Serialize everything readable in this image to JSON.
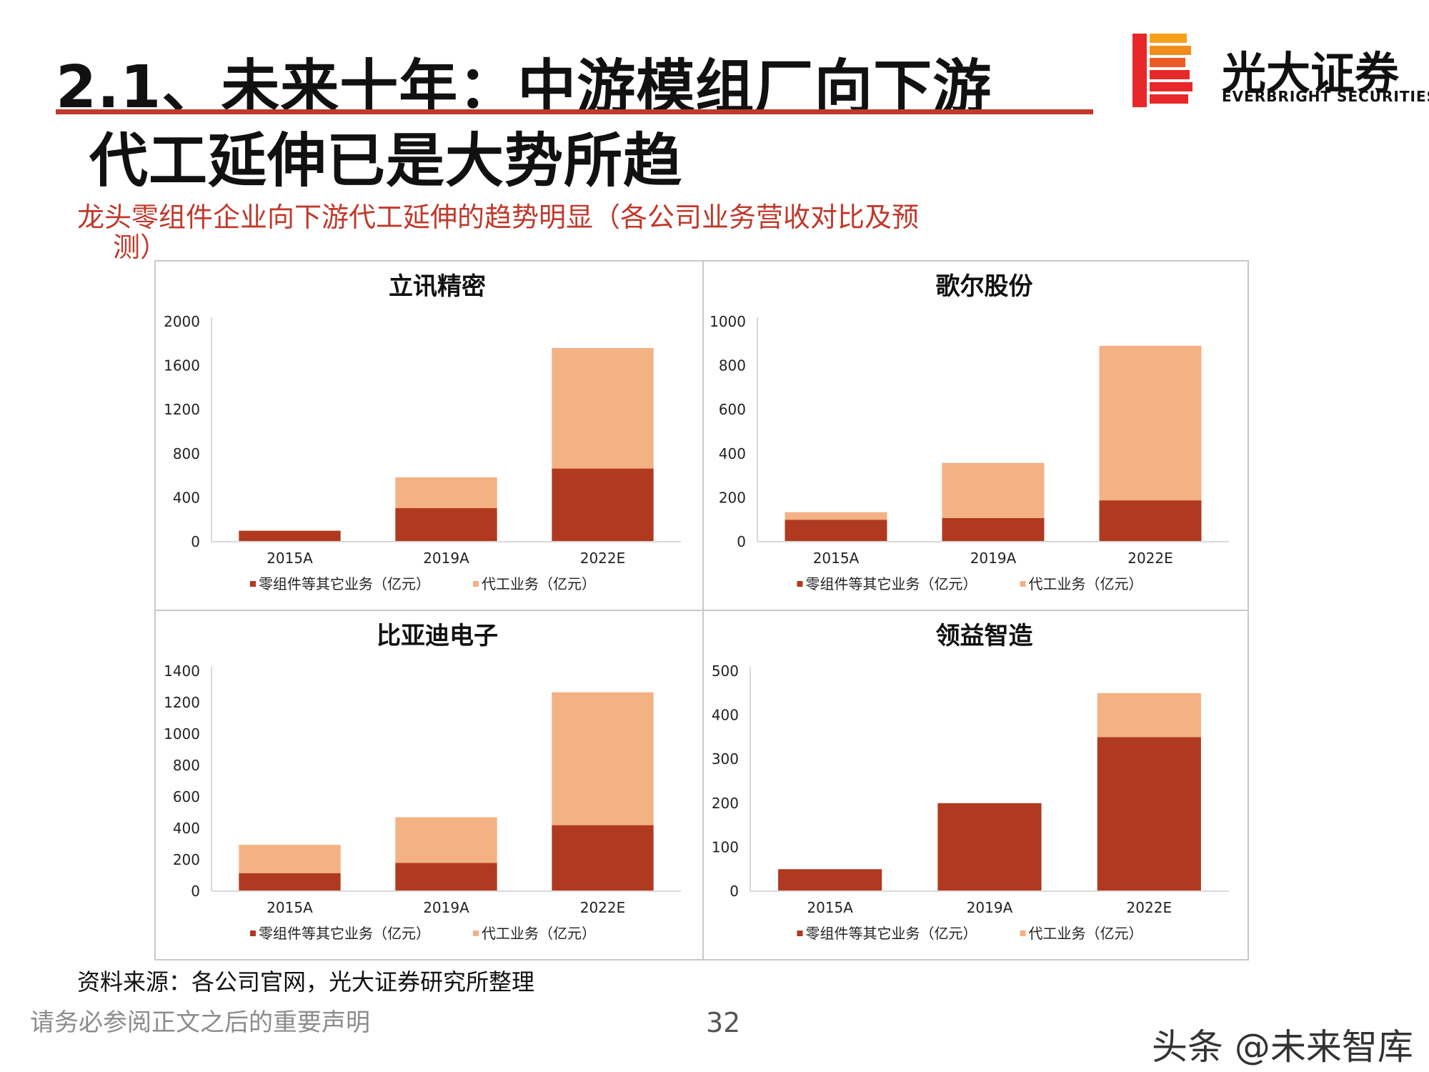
{
  "header": {
    "title_line1": "2.1、未来十年：中游模组厂向下游",
    "title_line2": "代工延伸已是大势所趋",
    "subtitle_line1": "龙头零组件企业向下游代工延伸的趋势明显（各公司业务营收对比及预",
    "subtitle_line2": "测）"
  },
  "logo": {
    "name_cn": "光大证券",
    "name_en": "EVERBRIGHT SECURITIES",
    "colors": [
      "#e8272a",
      "#f7a11a"
    ]
  },
  "colors": {
    "series_components": "#b03a20",
    "series_oem": "#f4b183",
    "accent": "#c0392b"
  },
  "chart_data": [
    {
      "type": "bar",
      "stacked": true,
      "title": "立讯精密",
      "categories": [
        "2015A",
        "2019A",
        "2022E"
      ],
      "series": [
        {
          "name": "零组件等其它业务（亿元）",
          "values": [
            100,
            305,
            665
          ]
        },
        {
          "name": "代工业务（亿元）",
          "values": [
            0,
            280,
            1095
          ]
        }
      ],
      "ylim": [
        0,
        2000
      ],
      "yticks": [
        0,
        400,
        800,
        1200,
        1600,
        2000
      ],
      "legend": "bottom"
    },
    {
      "type": "bar",
      "stacked": true,
      "title": "歌尔股份",
      "categories": [
        "2015A",
        "2019A",
        "2022E"
      ],
      "series": [
        {
          "name": "零组件等其它业务（亿元）",
          "values": [
            100,
            108,
            188
          ]
        },
        {
          "name": "代工业务（亿元）",
          "values": [
            34,
            250,
            702
          ]
        }
      ],
      "ylim": [
        0,
        1000
      ],
      "yticks": [
        0,
        200,
        400,
        600,
        800,
        1000
      ],
      "legend": "bottom"
    },
    {
      "type": "bar",
      "stacked": true,
      "title": "比亚迪电子",
      "categories": [
        "2015A",
        "2019A",
        "2022E"
      ],
      "series": [
        {
          "name": "零组件等其它业务（亿元）",
          "values": [
            115,
            180,
            420
          ]
        },
        {
          "name": "代工业务（亿元）",
          "values": [
            180,
            290,
            845
          ]
        }
      ],
      "ylim": [
        0,
        1400
      ],
      "yticks": [
        0,
        200,
        400,
        600,
        800,
        1000,
        1200,
        1400
      ],
      "legend": "bottom"
    },
    {
      "type": "bar",
      "stacked": true,
      "title": "领益智造",
      "categories": [
        "2015A",
        "2019A",
        "2022E"
      ],
      "series": [
        {
          "name": "零组件等其它业务（亿元）",
          "values": [
            50,
            200,
            350
          ]
        },
        {
          "name": "代工业务（亿元）",
          "values": [
            0,
            0,
            100
          ]
        }
      ],
      "ylim": [
        0,
        500
      ],
      "yticks": [
        0,
        100,
        200,
        300,
        400,
        500
      ],
      "legend": "bottom"
    }
  ],
  "footer": {
    "source": "资料来源：各公司官网，光大证券研究所整理",
    "disclaimer": "请务必参阅正文之后的重要声明",
    "page_number": "32",
    "watermark": "头条 @未来智库"
  }
}
